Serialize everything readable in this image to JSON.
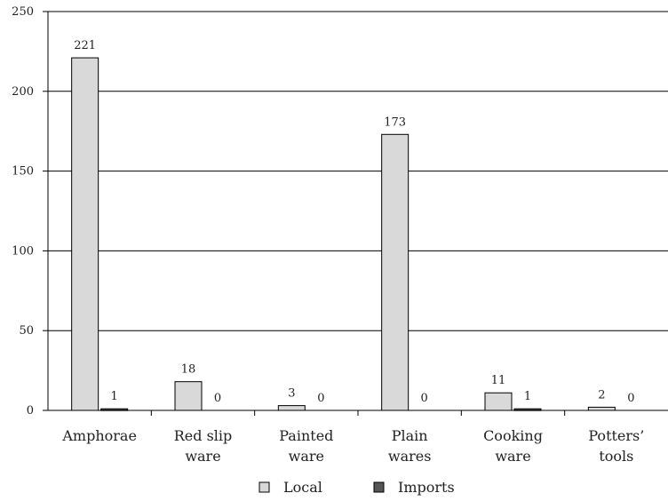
{
  "chart_data": {
    "type": "bar",
    "categories": [
      [
        "Amphorae"
      ],
      [
        "Red slip",
        "ware"
      ],
      [
        "Painted",
        "ware"
      ],
      [
        "Plain",
        "wares"
      ],
      [
        "Cooking",
        "ware"
      ],
      [
        "Potters’",
        "tools"
      ]
    ],
    "series": [
      {
        "name": "Local",
        "values": [
          221,
          18,
          3,
          173,
          11,
          2
        ],
        "color": "#d9d9d9"
      },
      {
        "name": "Imports",
        "values": [
          1,
          0,
          0,
          0,
          1,
          0
        ],
        "color": "#555555"
      }
    ],
    "ylim": [
      0,
      250
    ],
    "yticks": [
      0,
      50,
      100,
      150,
      200,
      250
    ],
    "grid": true,
    "legend_position": "bottom"
  }
}
